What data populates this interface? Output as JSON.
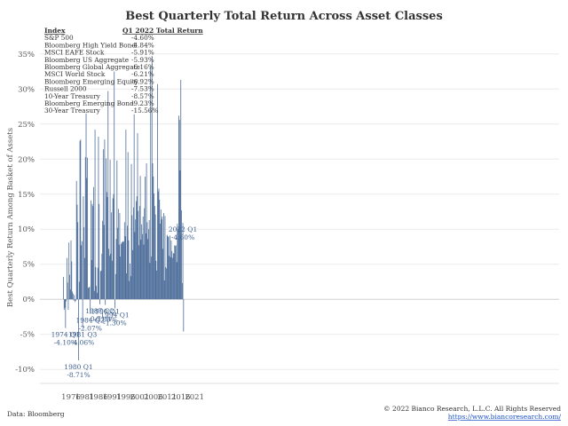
{
  "chart_data": {
    "type": "bar",
    "title": "Best Quarterly Total Return Across Asset Classes",
    "ylabel": "Best Quarterly Return Among Basket of Assets",
    "ylim": [
      -12,
      37
    ],
    "y_ticks": [
      "-10%",
      "-5%",
      "0%",
      "5%",
      "10%",
      "15%",
      "20%",
      "25%",
      "30%",
      "35%"
    ],
    "y_tick_values": [
      -10,
      -5,
      0,
      5,
      10,
      15,
      20,
      25,
      30,
      35
    ],
    "x_ticks": [
      "1976",
      "1981",
      "1986",
      "1991",
      "1996",
      "2001",
      "2006",
      "2011",
      "2016",
      "2021"
    ],
    "x_tick_values": [
      1976,
      1981,
      1986,
      1991,
      1996,
      2001,
      2006,
      2011,
      2016,
      2021
    ],
    "bar_color": "#4e6e9a",
    "grid": "horizontal",
    "first_quarter": "1973 Q2",
    "values": [
      3.2,
      -1.5,
      -1.2,
      -4.1,
      -0.3,
      5.9,
      2.4,
      -1.5,
      8.1,
      3.5,
      1.4,
      8.4,
      5.4,
      1.1,
      0.8,
      -0.2,
      0.6,
      -0.4,
      -0.2,
      16.9,
      13.5,
      11.0,
      -8.71,
      2.5,
      22.6,
      22.8,
      7.7,
      8.3,
      -4.06,
      14.7,
      10.3,
      5.9,
      20.3,
      26.5,
      17.3,
      20.2,
      1.6,
      1.7,
      1.8,
      -2.07,
      14.1,
      5.6,
      13.6,
      13.3,
      16.0,
      1.2,
      24.2,
      4.6,
      1.9,
      0.9,
      4.5,
      23.2,
      13.6,
      -0.71,
      4.0,
      4.1,
      6.5,
      11.2,
      21.4,
      10.6,
      22.8,
      -0.8,
      20.1,
      15.3,
      14.6,
      29.7,
      7.2,
      6.2,
      19.9,
      6.5,
      12.4,
      5.5,
      14.4,
      15.0,
      32.5,
      -1.3,
      3.6,
      8.6,
      19.8,
      10.2,
      12.9,
      7.8,
      12.3,
      6.1,
      7.9,
      8.1,
      8.2,
      8.3,
      8.2,
      11.0,
      9.0,
      24.2,
      3.7,
      10.5,
      21.0,
      8.4,
      2.6,
      5.1,
      3.3,
      19.3,
      12.0,
      7.0,
      13.1,
      26.4,
      9.6,
      11.4,
      14.0,
      14.7,
      23.7,
      12.6,
      7.7,
      13.3,
      17.6,
      8.5,
      10.7,
      9.3,
      11.8,
      7.8,
      13.0,
      17.5,
      9.4,
      19.4,
      11.0,
      8.6,
      10.0,
      11.3,
      5.2,
      33.2,
      6.1,
      34.7,
      19.4,
      17.5,
      15.1,
      13.3,
      12.1,
      5.5,
      4.1,
      30.7,
      15.4,
      15.8,
      14.2,
      10.8,
      12.8,
      11.4,
      11.8,
      7.2,
      12.3,
      2.7,
      11.9,
      4.6,
      4.4,
      9.2,
      9.0,
      8.9,
      6.2,
      9.1,
      6.0,
      8.4,
      6.9,
      5.9,
      6.6,
      6.5,
      7.7,
      7.6,
      7.7,
      5.3,
      10.8,
      10.1,
      26.2,
      25.6,
      18.4,
      31.3,
      12.7,
      2.3,
      10.9,
      -4.6
    ],
    "callouts": [
      {
        "label": "1974 Q1",
        "value_label": "-4.10%",
        "index": 3
      },
      {
        "label": "1980 Q1",
        "value_label": "-8.71%",
        "index": 22
      },
      {
        "label": "1981 Q3",
        "value_label": "-4.06%",
        "index": 28
      },
      {
        "label": "1984 Q2",
        "value_label": "-2.07%",
        "index": 39
      },
      {
        "label": "1987 Q2",
        "value_label": "-0.71%",
        "index": 53
      },
      {
        "label": "1990 Q1",
        "value_label": "-0.80%",
        "index": 61
      },
      {
        "label": "1994 Q1",
        "value_label": "-1.30%",
        "index": 75
      },
      {
        "label": "2022 Q1",
        "value_label": "-4.60%",
        "index": 174
      }
    ],
    "table": {
      "header_index": "Index",
      "header_return": "Q1 2022 Total Return",
      "rows": [
        {
          "name": "S&P 500",
          "value": "-4.60%"
        },
        {
          "name": "Bloomberg High Yield Bond",
          "value": "-4.84%"
        },
        {
          "name": "MSCI EAFE Stock",
          "value": "-5.91%"
        },
        {
          "name": "Bloomberg US Aggregate",
          "value": "-5.93%"
        },
        {
          "name": "Bloomberg Global Aggregate",
          "value": "-6.16%"
        },
        {
          "name": "MSCI World Stock",
          "value": "-6.21%"
        },
        {
          "name": "Bloomberg Emerging Equity",
          "value": "-6.92%"
        },
        {
          "name": "Russell 2000",
          "value": "-7.53%"
        },
        {
          "name": "10-Year Treasury",
          "value": "-8.57%"
        },
        {
          "name": "Bloomberg Emerging Bond",
          "value": "-9.23%"
        },
        {
          "name": "30-Year Treasury",
          "value": "-15.56%"
        }
      ]
    }
  },
  "footer": {
    "source": "Data: Bloomberg",
    "copyright": "© 2022 Bianco Research, L.L.C. All Rights Reserved",
    "url": "https://www.biancoresearch.com/"
  }
}
